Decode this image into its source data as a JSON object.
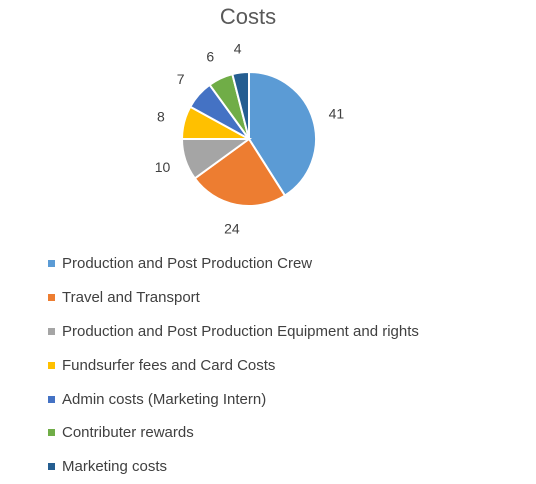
{
  "chart_data": {
    "type": "pie",
    "title": "Costs",
    "start_angle_deg": 0,
    "direction": "clockwise",
    "slice_border": "#ffffff",
    "legend_position": "bottom",
    "slices": [
      {
        "label": "Production and Post Production Crew",
        "value": 41,
        "color": "#5B9BD5"
      },
      {
        "label": "Travel and Transport",
        "value": 24,
        "color": "#ED7D31"
      },
      {
        "label": "Production and Post Production Equipment and rights",
        "value": 10,
        "color": "#A5A5A5"
      },
      {
        "label": "Fundsurfer fees and Card Costs",
        "value": 8,
        "color": "#FFC000"
      },
      {
        "label": "Admin costs (Marketing Intern)",
        "value": 7,
        "color": "#4472C4"
      },
      {
        "label": "Contributer rewards",
        "value": 6,
        "color": "#70AD47"
      },
      {
        "label": "Marketing costs",
        "value": 4,
        "color": "#255E91"
      }
    ]
  }
}
